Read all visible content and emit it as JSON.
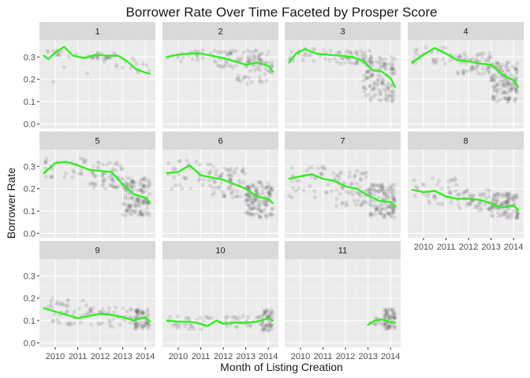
{
  "chart_data": {
    "type": "scatter",
    "title": "Borrower Rate Over Time Faceted by Prosper Score",
    "xlabel": "Month of Listing Creation",
    "ylabel": "Borrower Rate",
    "xlim": [
      2009.3,
      2014.45
    ],
    "ylim": [
      -0.02,
      0.375
    ],
    "x_ticks": [
      2010,
      2011,
      2012,
      2013,
      2014
    ],
    "x_tick_labels": [
      "2010",
      "2011",
      "2012",
      "2013",
      "2014"
    ],
    "y_ticks": [
      0.0,
      0.1,
      0.2,
      0.3
    ],
    "y_tick_labels": [
      "0.0",
      "0.1",
      "0.2",
      "0.3"
    ],
    "grid": true,
    "facet_by": "Prosper Score",
    "point_color": "#000000",
    "smooth_color": "#33ee22",
    "facets": [
      {
        "label": "1",
        "smooth": {
          "x": [
            2009.5,
            2009.7,
            2010.0,
            2010.4,
            2010.8,
            2011.3,
            2011.8,
            2012.3,
            2012.8,
            2013.2,
            2013.6,
            2014.0,
            2014.2
          ],
          "y": [
            0.305,
            0.29,
            0.32,
            0.345,
            0.305,
            0.295,
            0.31,
            0.305,
            0.305,
            0.28,
            0.245,
            0.23,
            0.225
          ]
        },
        "clusters": [
          {
            "x0": 2009.5,
            "x1": 2010.4,
            "y": [
              0.3,
              0.33
            ],
            "n": 10
          },
          {
            "x0": 2011.3,
            "x1": 2012.7,
            "y": [
              0.29,
              0.32
            ],
            "n": 25
          },
          {
            "x0": 2012.7,
            "x1": 2014.2,
            "y": [
              0.2,
              0.3
            ],
            "n": 12
          },
          {
            "x0": 2009.5,
            "x1": 2014.2,
            "y": [
              0.14,
              0.34
            ],
            "n": 10
          }
        ]
      },
      {
        "label": "2",
        "smooth": {
          "x": [
            2009.5,
            2010.0,
            2010.5,
            2011.0,
            2011.5,
            2012.0,
            2012.5,
            2013.0,
            2013.5,
            2014.0,
            2014.2
          ],
          "y": [
            0.3,
            0.31,
            0.315,
            0.315,
            0.305,
            0.295,
            0.28,
            0.265,
            0.275,
            0.26,
            0.235
          ]
        },
        "clusters": [
          {
            "x0": 2009.5,
            "x1": 2011.5,
            "y": [
              0.28,
              0.33
            ],
            "n": 20
          },
          {
            "x0": 2011.5,
            "x1": 2014.2,
            "y": [
              0.25,
              0.33
            ],
            "n": 70
          },
          {
            "x0": 2012.5,
            "x1": 2014.2,
            "y": [
              0.18,
              0.3
            ],
            "n": 40
          }
        ]
      },
      {
        "label": "3",
        "smooth": {
          "x": [
            2009.5,
            2009.8,
            2010.2,
            2010.7,
            2011.2,
            2011.8,
            2012.3,
            2012.8,
            2013.2,
            2013.6,
            2014.0,
            2014.2
          ],
          "y": [
            0.275,
            0.315,
            0.335,
            0.315,
            0.31,
            0.305,
            0.3,
            0.28,
            0.24,
            0.235,
            0.205,
            0.165
          ]
        },
        "clusters": [
          {
            "x0": 2009.5,
            "x1": 2011.5,
            "y": [
              0.28,
              0.34
            ],
            "n": 25
          },
          {
            "x0": 2011.5,
            "x1": 2013.2,
            "y": [
              0.27,
              0.33
            ],
            "n": 50
          },
          {
            "x0": 2012.8,
            "x1": 2014.2,
            "y": [
              0.1,
              0.3
            ],
            "n": 120
          }
        ]
      },
      {
        "label": "4",
        "smooth": {
          "x": [
            2009.5,
            2010.0,
            2010.5,
            2011.0,
            2011.5,
            2012.0,
            2012.5,
            2013.0,
            2013.5,
            2014.0,
            2014.2
          ],
          "y": [
            0.275,
            0.31,
            0.34,
            0.315,
            0.285,
            0.28,
            0.27,
            0.265,
            0.22,
            0.195,
            0.165
          ]
        },
        "clusters": [
          {
            "x0": 2009.5,
            "x1": 2011.5,
            "y": [
              0.27,
              0.35
            ],
            "n": 30
          },
          {
            "x0": 2011.5,
            "x1": 2013.0,
            "y": [
              0.22,
              0.32
            ],
            "n": 60
          },
          {
            "x0": 2013.0,
            "x1": 2014.2,
            "y": [
              0.1,
              0.28
            ],
            "n": 130
          }
        ]
      },
      {
        "label": "5",
        "smooth": {
          "x": [
            2009.5,
            2010.0,
            2010.5,
            2011.0,
            2011.5,
            2012.0,
            2012.5,
            2013.0,
            2013.5,
            2014.0,
            2014.2
          ],
          "y": [
            0.27,
            0.315,
            0.32,
            0.305,
            0.285,
            0.28,
            0.275,
            0.22,
            0.175,
            0.16,
            0.14
          ]
        },
        "clusters": [
          {
            "x0": 2009.5,
            "x1": 2011.5,
            "y": [
              0.25,
              0.34
            ],
            "n": 30
          },
          {
            "x0": 2011.5,
            "x1": 2013.0,
            "y": [
              0.2,
              0.32
            ],
            "n": 60
          },
          {
            "x0": 2013.0,
            "x1": 2014.2,
            "y": [
              0.08,
              0.25
            ],
            "n": 130
          }
        ]
      },
      {
        "label": "6",
        "smooth": {
          "x": [
            2009.5,
            2010.0,
            2010.5,
            2011.0,
            2011.5,
            2012.0,
            2012.5,
            2013.0,
            2013.5,
            2014.0,
            2014.2
          ],
          "y": [
            0.27,
            0.275,
            0.305,
            0.26,
            0.25,
            0.24,
            0.22,
            0.2,
            0.165,
            0.155,
            0.135
          ]
        },
        "clusters": [
          {
            "x0": 2009.5,
            "x1": 2011.5,
            "y": [
              0.2,
              0.33
            ],
            "n": 35
          },
          {
            "x0": 2011.5,
            "x1": 2013.0,
            "y": [
              0.16,
              0.3
            ],
            "n": 60
          },
          {
            "x0": 2013.0,
            "x1": 2014.2,
            "y": [
              0.07,
              0.23
            ],
            "n": 130
          }
        ]
      },
      {
        "label": "7",
        "smooth": {
          "x": [
            2009.5,
            2010.0,
            2010.5,
            2011.0,
            2011.5,
            2012.0,
            2012.5,
            2013.0,
            2013.5,
            2014.0,
            2014.2
          ],
          "y": [
            0.245,
            0.255,
            0.265,
            0.245,
            0.235,
            0.21,
            0.2,
            0.17,
            0.145,
            0.14,
            0.12
          ]
        },
        "clusters": [
          {
            "x0": 2009.5,
            "x1": 2011.5,
            "y": [
              0.16,
              0.3
            ],
            "n": 35
          },
          {
            "x0": 2011.5,
            "x1": 2013.0,
            "y": [
              0.12,
              0.28
            ],
            "n": 60
          },
          {
            "x0": 2013.0,
            "x1": 2014.2,
            "y": [
              0.07,
              0.22
            ],
            "n": 120
          }
        ]
      },
      {
        "label": "8",
        "smooth": {
          "x": [
            2009.5,
            2010.0,
            2010.5,
            2011.0,
            2011.5,
            2012.0,
            2012.5,
            2013.0,
            2013.5,
            2014.0,
            2014.2
          ],
          "y": [
            0.195,
            0.185,
            0.19,
            0.165,
            0.155,
            0.155,
            0.15,
            0.135,
            0.115,
            0.125,
            0.105
          ]
        },
        "clusters": [
          {
            "x0": 2009.5,
            "x1": 2011.5,
            "y": [
              0.12,
              0.25
            ],
            "n": 35
          },
          {
            "x0": 2011.5,
            "x1": 2013.0,
            "y": [
              0.1,
              0.2
            ],
            "n": 50
          },
          {
            "x0": 2013.0,
            "x1": 2014.2,
            "y": [
              0.07,
              0.18
            ],
            "n": 100
          }
        ]
      },
      {
        "label": "9",
        "smooth": {
          "x": [
            2009.5,
            2010.0,
            2010.5,
            2011.0,
            2011.5,
            2012.0,
            2012.5,
            2013.0,
            2013.5,
            2014.0,
            2014.2
          ],
          "y": [
            0.155,
            0.14,
            0.125,
            0.11,
            0.12,
            0.13,
            0.125,
            0.115,
            0.1,
            0.115,
            0.095
          ]
        },
        "clusters": [
          {
            "x0": 2009.5,
            "x1": 2011.5,
            "y": [
              0.08,
              0.2
            ],
            "n": 40
          },
          {
            "x0": 2011.5,
            "x1": 2013.5,
            "y": [
              0.07,
              0.16
            ],
            "n": 40
          },
          {
            "x0": 2013.5,
            "x1": 2014.2,
            "y": [
              0.06,
              0.15
            ],
            "n": 60
          }
        ]
      },
      {
        "label": "10",
        "smooth": {
          "x": [
            2009.5,
            2010.0,
            2010.5,
            2011.0,
            2011.3,
            2011.7,
            2012.0,
            2012.5,
            2013.0,
            2013.5,
            2014.0,
            2014.2
          ],
          "y": [
            0.1,
            0.095,
            0.095,
            0.085,
            0.075,
            0.1,
            0.085,
            0.09,
            0.09,
            0.095,
            0.11,
            0.1
          ]
        },
        "clusters": [
          {
            "x0": 2009.5,
            "x1": 2012.0,
            "y": [
              0.06,
              0.12
            ],
            "n": 30
          },
          {
            "x0": 2012.0,
            "x1": 2013.7,
            "y": [
              0.07,
              0.12
            ],
            "n": 30
          },
          {
            "x0": 2013.7,
            "x1": 2014.2,
            "y": [
              0.05,
              0.15
            ],
            "n": 50
          }
        ]
      },
      {
        "label": "11",
        "smooth": {
          "x": [
            2013.0,
            2013.3,
            2013.6,
            2013.9,
            2014.2
          ],
          "y": [
            0.08,
            0.1,
            0.105,
            0.095,
            0.09
          ]
        },
        "clusters": [
          {
            "x0": 2013.0,
            "x1": 2013.6,
            "y": [
              0.08,
              0.11
            ],
            "n": 10
          },
          {
            "x0": 2013.7,
            "x1": 2014.2,
            "y": [
              0.06,
              0.15
            ],
            "n": 60
          }
        ]
      }
    ]
  }
}
